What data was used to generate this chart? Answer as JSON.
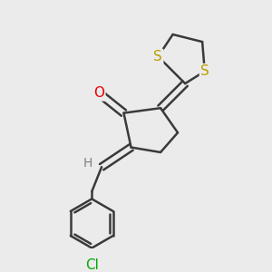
{
  "background_color": "#ebebeb",
  "bond_color": "#3a3a3a",
  "S_color": "#b8a000",
  "O_color": "#ee0000",
  "Cl_color": "#00aa00",
  "H_color": "#808080",
  "figsize": [
    3.0,
    3.0
  ],
  "dpi": 100,
  "xlim": [
    0,
    10
  ],
  "ylim": [
    0,
    10
  ],
  "lw": 1.8,
  "font_size": 11
}
